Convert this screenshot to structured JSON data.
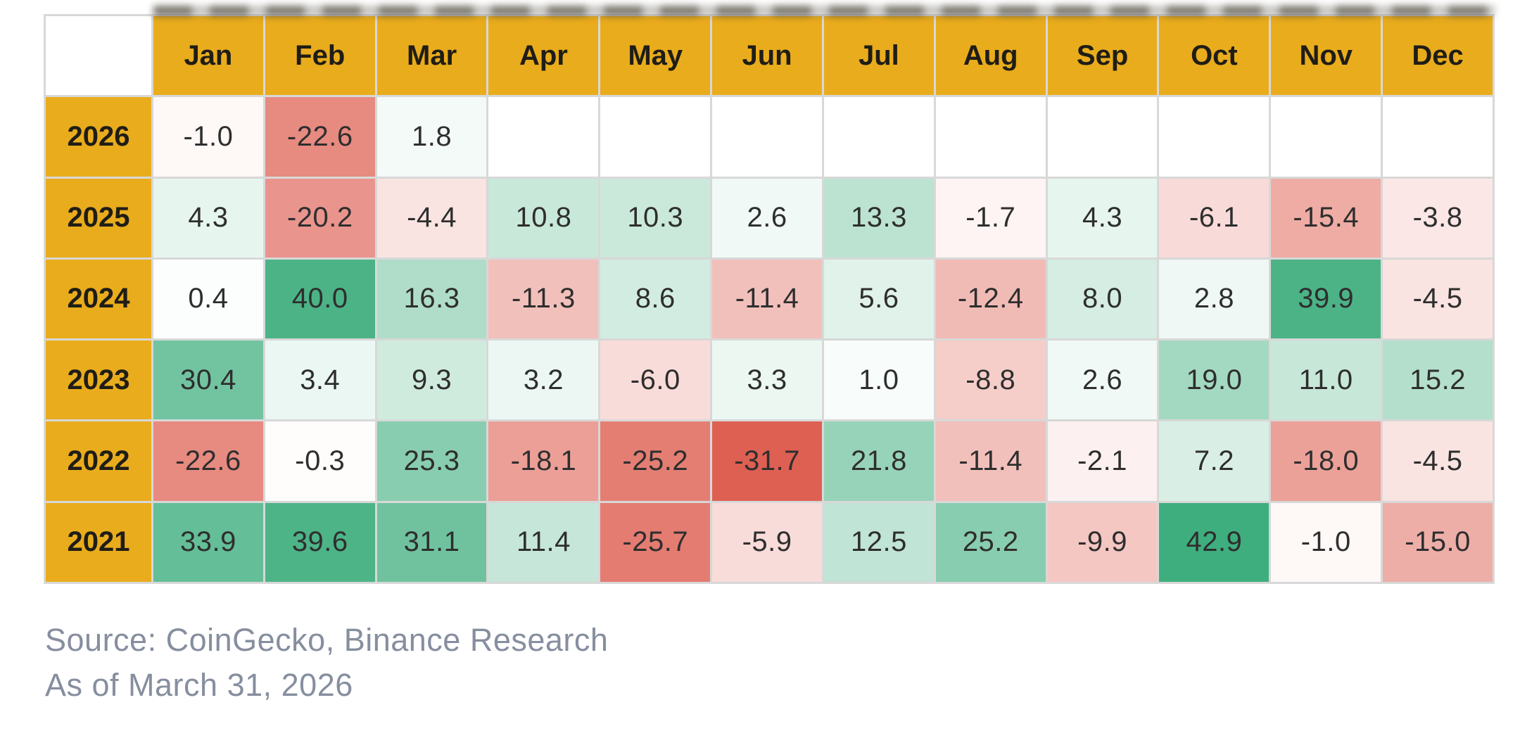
{
  "chart_data": {
    "type": "heatmap",
    "title": "",
    "value_unit": "percent monthly return",
    "x_labels": [
      "Jan",
      "Feb",
      "Mar",
      "Apr",
      "May",
      "Jun",
      "Jul",
      "Aug",
      "Sep",
      "Oct",
      "Nov",
      "Dec"
    ],
    "y_labels": [
      "2026",
      "2025",
      "2024",
      "2023",
      "2022",
      "2021"
    ],
    "values": [
      [
        -1.0,
        -22.6,
        1.8,
        null,
        null,
        null,
        null,
        null,
        null,
        null,
        null,
        null
      ],
      [
        4.3,
        -20.2,
        -4.4,
        10.8,
        10.3,
        2.6,
        13.3,
        -1.7,
        4.3,
        -6.1,
        -15.4,
        -3.8
      ],
      [
        0.4,
        40.0,
        16.3,
        -11.3,
        8.6,
        -11.4,
        5.6,
        -12.4,
        8.0,
        2.8,
        39.9,
        -4.5
      ],
      [
        30.4,
        3.4,
        9.3,
        3.2,
        -6.0,
        3.3,
        1.0,
        -8.8,
        2.6,
        19.0,
        11.0,
        15.2
      ],
      [
        -22.6,
        -0.3,
        25.3,
        -18.1,
        -25.2,
        -31.7,
        21.8,
        -11.4,
        -2.1,
        7.2,
        -18.0,
        -4.5
      ],
      [
        33.9,
        39.6,
        31.1,
        11.4,
        -25.7,
        -5.9,
        12.5,
        25.2,
        -9.9,
        42.9,
        -1.0,
        -15.0
      ]
    ],
    "color_scale": {
      "positive_end": "#3FAE7E",
      "negative_end": "#DE5F52",
      "zero": "#FFFFFF",
      "positive_domain_max": 43,
      "negative_domain_min": -32
    },
    "legend_position": "none",
    "grid": true
  },
  "colors": {
    "header_bg": "#E9AC1C",
    "grid_line": "#D8D8D8",
    "cell_text": "#2E2E2E",
    "header_text": "#1F1D16",
    "footer_text": "#868E9F"
  },
  "footer": {
    "source": "Source: CoinGecko, Binance Research",
    "as_of": "As of March 31, 2026"
  }
}
